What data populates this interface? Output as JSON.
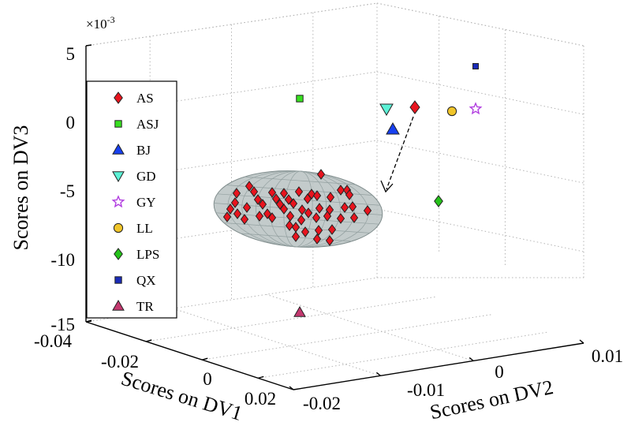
{
  "chart_data": {
    "type": "scatter",
    "projection": "3d",
    "exponent_label": "×10-3",
    "exponent_base": "×10",
    "exponent_power": "-3",
    "xlabel": "Scores on DV1",
    "ylabel": "Scores on DV2",
    "zlabel": "Scores on DV3",
    "xticks": [
      "-0.04",
      "-0.02",
      "0",
      "0.02"
    ],
    "yticks": [
      "-0.02",
      "-0.01",
      "0",
      "0.01"
    ],
    "zticks": [
      "5",
      "0",
      "-5",
      "-10",
      "-15"
    ],
    "grid": true,
    "legend_position": "left",
    "confidence_region": "ellipsoid around AS samples",
    "series": [
      {
        "name": "AS",
        "marker": "diamond",
        "color": "#e8141e"
      },
      {
        "name": "ASJ",
        "marker": "square",
        "color": "#37e01f"
      },
      {
        "name": "BJ",
        "marker": "triangle-up",
        "color": "#1740f0"
      },
      {
        "name": "GD",
        "marker": "triangle-down",
        "color": "#5cf2d6"
      },
      {
        "name": "GY",
        "marker": "star",
        "color": "#b13de0"
      },
      {
        "name": "LL",
        "marker": "circle",
        "color": "#f0c52a"
      },
      {
        "name": "LPS",
        "marker": "diamond",
        "color": "#25c21a"
      },
      {
        "name": "QX",
        "marker": "square",
        "color": "#1a2bb8"
      },
      {
        "name": "TR",
        "marker": "triangle-up",
        "color": "#c4386f"
      }
    ]
  }
}
